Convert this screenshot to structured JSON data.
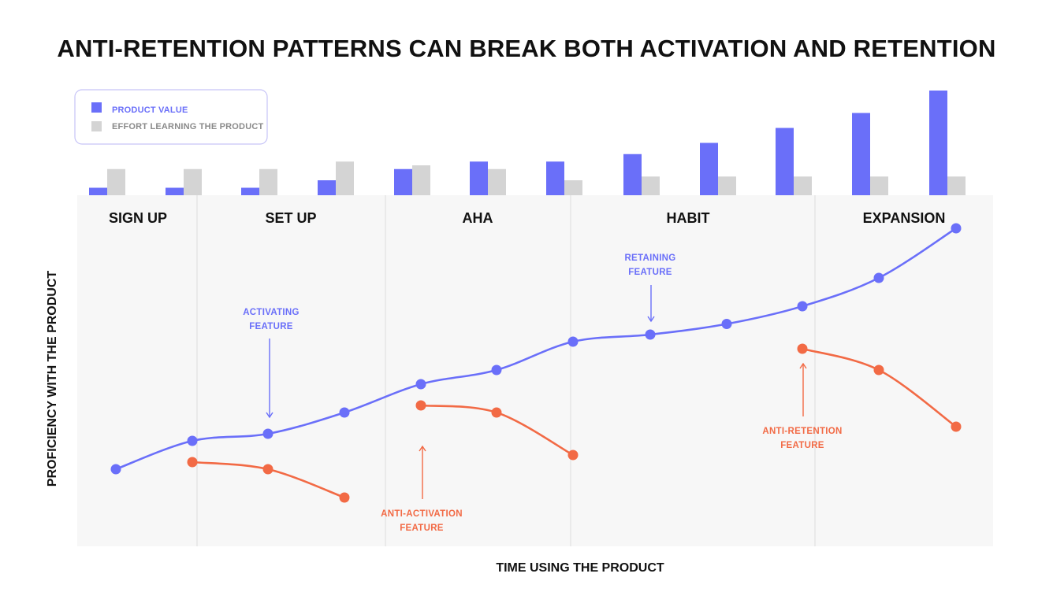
{
  "title": "ANTI-RETENTION PATTERNS CAN BREAK BOTH ACTIVATION AND RETENTION",
  "legend": {
    "value_label": "PRODUCT VALUE",
    "effort_label": "EFFORT LEARNING THE PRODUCT"
  },
  "colors": {
    "value": "#6a6ff9",
    "effort": "#d4d4d4",
    "anti": "#f26a45",
    "panel": "#f7f7f7",
    "legend_border": "#c6c3f7"
  },
  "stages": [
    "SIGN UP",
    "SET UP",
    "AHA",
    "HABIT",
    "EXPANSION"
  ],
  "x_axis_label": "TIME USING THE PRODUCT",
  "y_axis_label": "PROFICIENCY WITH THE PRODUCT",
  "annotations": {
    "activating": [
      "ACTIVATING",
      "FEATURE"
    ],
    "retaining": [
      "RETAINING",
      "FEATURE"
    ],
    "anti_activation": [
      "ANTI-ACTIVATION",
      "FEATURE"
    ],
    "anti_retention": [
      "ANTI-RETENTION",
      "FEATURE"
    ]
  },
  "chart_data": {
    "type": "bar",
    "bars": {
      "product_value": [
        1,
        1,
        1,
        2,
        3.5,
        4.5,
        4.5,
        5.5,
        7,
        9,
        11,
        14
      ],
      "effort": [
        3.5,
        3.5,
        3.5,
        4.5,
        4,
        3.5,
        2,
        2.5,
        2.5,
        2.5,
        2.5,
        2.5
      ]
    },
    "main_curve": [
      1.6,
      2.0,
      2.1,
      2.4,
      2.8,
      3.0,
      3.4,
      3.5,
      3.65,
      3.9,
      4.3,
      5.0
    ],
    "anti_activation_curves": [
      {
        "start": 1,
        "values": [
          1.7,
          1.6,
          1.2
        ]
      },
      {
        "start": 4,
        "values": [
          2.5,
          2.4,
          1.8
        ]
      }
    ],
    "anti_retention_curve": {
      "start": 9,
      "values": [
        3.3,
        3.0,
        2.2
      ]
    }
  }
}
